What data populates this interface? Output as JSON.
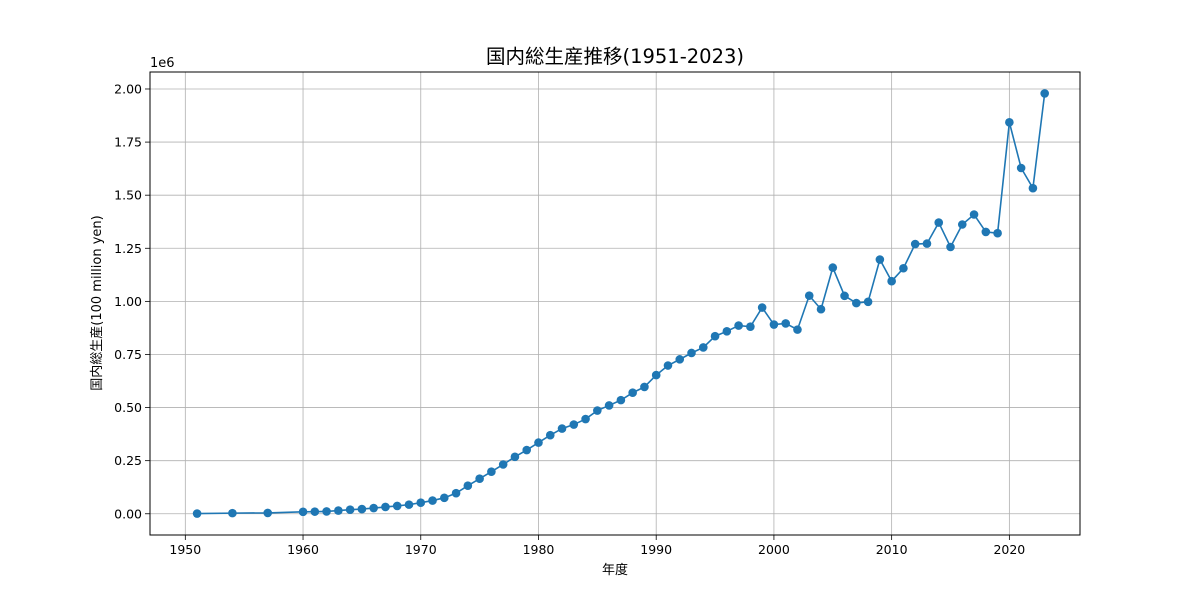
{
  "chart_data": {
    "type": "line",
    "title": "国内総生産推移(1951-2023)",
    "xlabel": "年度",
    "ylabel": "国内総生産(100 million yen)",
    "y_offset_label": "1e6",
    "xlim": [
      1947,
      2026
    ],
    "ylim": [
      -100000,
      2080000
    ],
    "x_ticks": [
      1950,
      1960,
      1970,
      1980,
      1990,
      2000,
      2010,
      2020
    ],
    "x_tick_labels": [
      "1950",
      "1960",
      "1970",
      "1980",
      "1990",
      "2000",
      "2010",
      "2020"
    ],
    "y_ticks": [
      0,
      250000,
      500000,
      750000,
      1000000,
      1250000,
      1500000,
      1750000,
      2000000
    ],
    "y_tick_labels": [
      "0.00",
      "0.25",
      "0.50",
      "0.75",
      "1.00",
      "1.25",
      "1.50",
      "1.75",
      "2.00"
    ],
    "grid": true,
    "color": "#1f77b4",
    "series": [
      {
        "x": [
          1951,
          1954,
          1957,
          1960,
          1961,
          1962,
          1963,
          1964,
          1965,
          1966,
          1967,
          1968,
          1969,
          1970,
          1971,
          1972,
          1973,
          1974,
          1975,
          1976,
          1977,
          1978,
          1979,
          1980,
          1981,
          1982,
          1983,
          1984,
          1985,
          1986,
          1987,
          1988,
          1989,
          1990,
          1991,
          1992,
          1993,
          1994,
          1995,
          1996,
          1997,
          1998,
          1999,
          2000,
          2001,
          2002,
          2003,
          2004,
          2005,
          2006,
          2007,
          2008,
          2009,
          2010,
          2011,
          2012,
          2013,
          2014,
          2015,
          2016,
          2017,
          2018,
          2019,
          2020,
          2021,
          2022,
          2023
        ],
        "y": [
          1000,
          3000,
          4000,
          9000,
          10000,
          11000,
          15000,
          19000,
          22000,
          27000,
          32000,
          37000,
          43000,
          52000,
          62000,
          75000,
          97000,
          132000,
          165000,
          198000,
          232000,
          268000,
          300000,
          335000,
          370000,
          401000,
          420000,
          446000,
          486000,
          510000,
          535000,
          570000,
          597000,
          653000,
          698000,
          727000,
          757000,
          783000,
          836000,
          859000,
          886000,
          881000,
          971000,
          891000,
          896000,
          867000,
          1027000,
          963000,
          1159000,
          1026000,
          992000,
          998000,
          1197000,
          1095000,
          1156000,
          1270000,
          1272000,
          1371000,
          1256000,
          1362000,
          1409000,
          1327000,
          1321000,
          1843000,
          1628000,
          1533000,
          1979000
        ]
      }
    ]
  }
}
